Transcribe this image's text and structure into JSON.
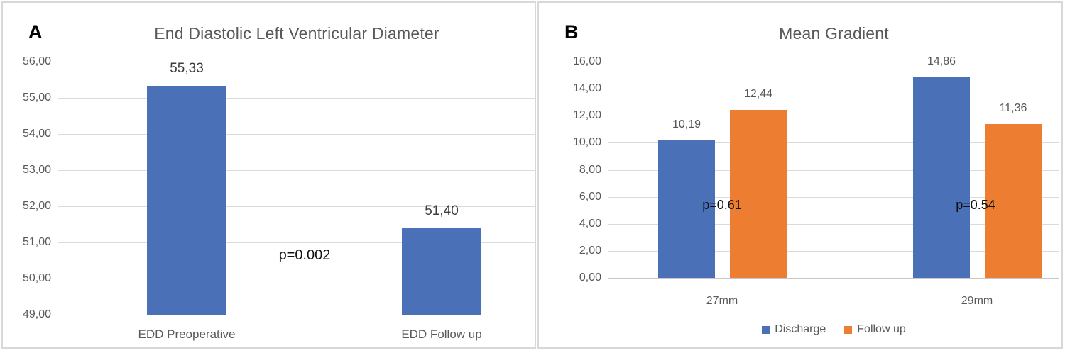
{
  "chart_data": [
    {
      "type": "bar",
      "panel_label": "A",
      "title": "End Diastolic Left Ventricular Diameter",
      "categories": [
        "EDD Preoperative",
        "EDD Follow up"
      ],
      "series": [
        {
          "name": "EDD",
          "color": "#4A71B8",
          "values": [
            55.33,
            51.4
          ],
          "value_labels": [
            "55,33",
            "51,40"
          ]
        }
      ],
      "xlabel": "",
      "ylabel": "",
      "ylim": [
        49,
        56
      ],
      "ytick_step": 1,
      "ytick_labels": [
        "56,00",
        "55,00",
        "54,00",
        "53,00",
        "52,00",
        "51,00",
        "50,00",
        "49,00"
      ],
      "grid": true,
      "decimal_separator": ",",
      "annotations": [
        {
          "text": "p=0.002",
          "y": 50.62,
          "position": "between the two bars"
        }
      ],
      "legend": {
        "visible": false,
        "entries": []
      }
    },
    {
      "type": "bar",
      "panel_label": "B",
      "title": "Mean Gradient",
      "categories": [
        "27mm",
        "29mm"
      ],
      "series": [
        {
          "name": "Discharge",
          "color": "#4A71B8",
          "values": [
            10.19,
            14.86
          ],
          "value_labels": [
            "10,19",
            "14,86"
          ]
        },
        {
          "name": "Follow up",
          "color": "#ED7D31",
          "values": [
            12.44,
            11.36
          ],
          "value_labels": [
            "12,44",
            "11,36"
          ]
        }
      ],
      "xlabel": "",
      "ylabel": "",
      "ylim": [
        0,
        16
      ],
      "ytick_step": 2,
      "ytick_labels": [
        "16,00",
        "14,00",
        "12,00",
        "10,00",
        "8,00",
        "6,00",
        "4,00",
        "2,00",
        "0,00"
      ],
      "grid": true,
      "decimal_separator": ",",
      "annotations": [
        {
          "text": "p=0.61",
          "y": 5.35,
          "category_index": 0
        },
        {
          "text": "p=0.54",
          "y": 5.35,
          "category_index": 1
        }
      ],
      "legend": {
        "visible": true,
        "position": "bottom",
        "entries": [
          "Discharge",
          "Follow up"
        ]
      }
    }
  ]
}
